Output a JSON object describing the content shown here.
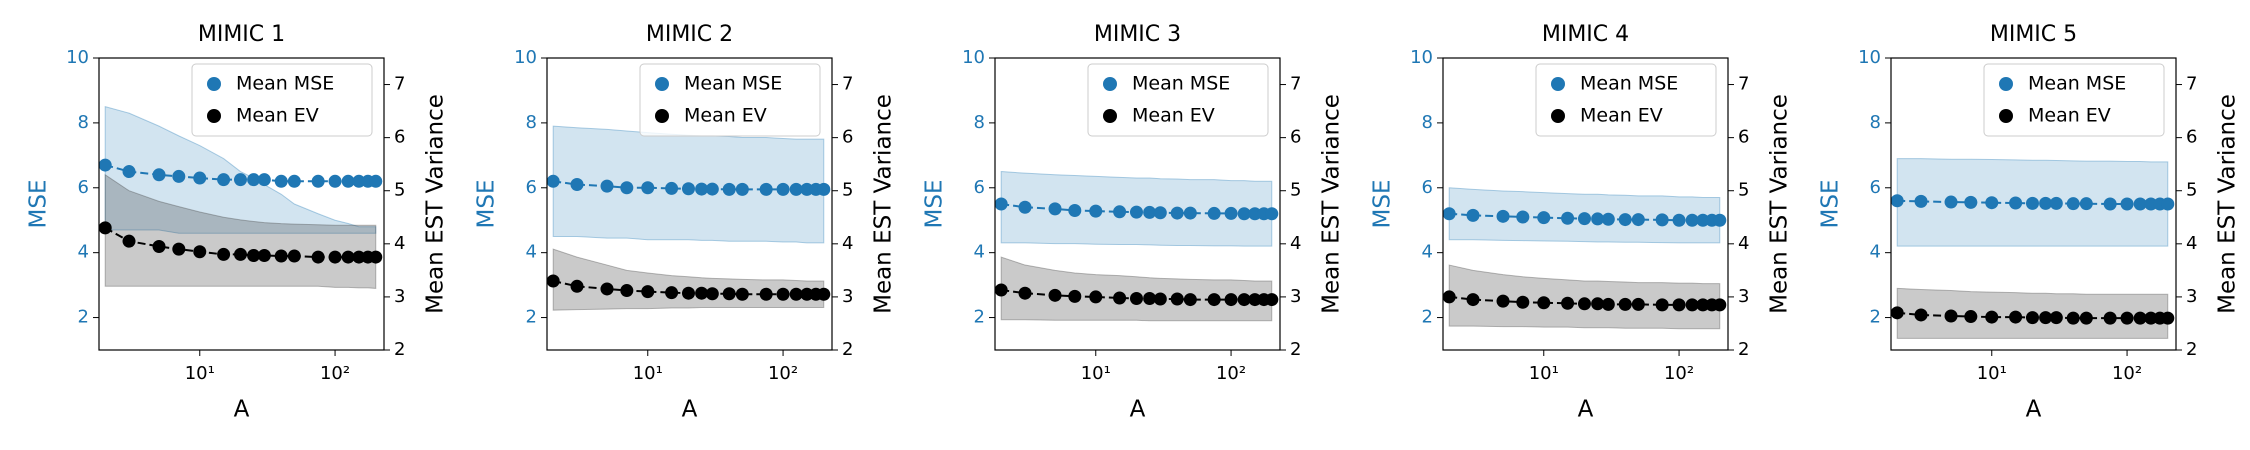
{
  "chart_data": [
    {
      "type": "line",
      "title": "MIMIC 1",
      "xlabel": "A",
      "ylabel": "MSE",
      "y2label": "Mean EST Variance",
      "xscale": "log",
      "legend": "upper right",
      "x": [
        2,
        3,
        5,
        7,
        10,
        15,
        20,
        25,
        30,
        40,
        50,
        75,
        100,
        125,
        150,
        175,
        200
      ],
      "xlim": [
        1.8,
        230
      ],
      "xticks": [
        {
          "value": 10,
          "label": "10¹"
        },
        {
          "value": 100,
          "label": "10²"
        }
      ],
      "ylim": [
        1,
        10
      ],
      "yticks": [
        2,
        4,
        6,
        8,
        10
      ],
      "y2lim": [
        2,
        7.5
      ],
      "y2ticks": [
        2,
        3,
        4,
        5,
        6,
        7
      ],
      "series": [
        {
          "name": "Mean MSE",
          "color": "#1f77b4",
          "band_color": "#1f77b4",
          "values": [
            6.7,
            6.5,
            6.4,
            6.35,
            6.3,
            6.25,
            6.25,
            6.25,
            6.25,
            6.2,
            6.2,
            6.2,
            6.2,
            6.2,
            6.2,
            6.2,
            6.2
          ],
          "upper": [
            8.5,
            8.3,
            7.9,
            7.6,
            7.3,
            6.9,
            6.5,
            6.3,
            6.1,
            5.8,
            5.5,
            5.2,
            5.0,
            4.9,
            4.8,
            4.8,
            4.8
          ],
          "lower": [
            4.7,
            4.7,
            4.7,
            4.6,
            4.6,
            4.6,
            4.6,
            4.6,
            4.6,
            4.6,
            4.6,
            4.6,
            4.6,
            4.6,
            4.6,
            4.6,
            4.6
          ]
        },
        {
          "name": "Mean EV",
          "color": "#000000",
          "band_color": "#404040",
          "axis": "y2",
          "values": [
            4.3,
            4.05,
            3.95,
            3.9,
            3.85,
            3.8,
            3.8,
            3.78,
            3.78,
            3.77,
            3.77,
            3.75,
            3.75,
            3.75,
            3.75,
            3.75,
            3.75
          ],
          "upper": [
            5.3,
            5.0,
            4.8,
            4.7,
            4.6,
            4.5,
            4.45,
            4.42,
            4.4,
            4.38,
            4.37,
            4.36,
            4.35,
            4.35,
            4.35,
            4.35,
            4.35
          ],
          "lower": [
            3.2,
            3.2,
            3.2,
            3.2,
            3.2,
            3.2,
            3.2,
            3.2,
            3.2,
            3.2,
            3.2,
            3.2,
            3.18,
            3.18,
            3.17,
            3.17,
            3.16
          ]
        }
      ]
    },
    {
      "type": "line",
      "title": "MIMIC 2",
      "xlabel": "A",
      "ylabel": "MSE",
      "y2label": "Mean EST Variance",
      "xscale": "log",
      "legend": "upper right",
      "x": [
        2,
        3,
        5,
        7,
        10,
        15,
        20,
        25,
        30,
        40,
        50,
        75,
        100,
        125,
        150,
        175,
        200
      ],
      "xlim": [
        1.8,
        230
      ],
      "xticks": [
        {
          "value": 10,
          "label": "10¹"
        },
        {
          "value": 100,
          "label": "10²"
        }
      ],
      "ylim": [
        1,
        10
      ],
      "yticks": [
        2,
        4,
        6,
        8,
        10
      ],
      "y2lim": [
        2,
        7.5
      ],
      "y2ticks": [
        2,
        3,
        4,
        5,
        6,
        7
      ],
      "series": [
        {
          "name": "Mean MSE",
          "color": "#1f77b4",
          "band_color": "#1f77b4",
          "values": [
            6.2,
            6.1,
            6.05,
            6.0,
            6.0,
            5.98,
            5.97,
            5.96,
            5.96,
            5.95,
            5.95,
            5.95,
            5.95,
            5.95,
            5.95,
            5.95,
            5.95
          ],
          "upper": [
            7.9,
            7.85,
            7.8,
            7.75,
            7.7,
            7.65,
            7.62,
            7.6,
            7.6,
            7.58,
            7.55,
            7.55,
            7.52,
            7.5,
            7.5,
            7.5,
            7.5
          ],
          "lower": [
            4.5,
            4.5,
            4.45,
            4.45,
            4.4,
            4.4,
            4.4,
            4.38,
            4.38,
            4.35,
            4.35,
            4.35,
            4.33,
            4.33,
            4.3,
            4.3,
            4.3
          ]
        },
        {
          "name": "Mean EV",
          "color": "#000000",
          "band_color": "#404040",
          "axis": "y2",
          "values": [
            3.3,
            3.2,
            3.15,
            3.12,
            3.1,
            3.08,
            3.07,
            3.07,
            3.06,
            3.06,
            3.05,
            3.05,
            3.05,
            3.05,
            3.05,
            3.05,
            3.05
          ],
          "upper": [
            3.9,
            3.75,
            3.6,
            3.5,
            3.45,
            3.4,
            3.38,
            3.36,
            3.35,
            3.34,
            3.33,
            3.32,
            3.32,
            3.31,
            3.3,
            3.3,
            3.3
          ],
          "lower": [
            2.75,
            2.76,
            2.77,
            2.78,
            2.78,
            2.79,
            2.79,
            2.8,
            2.8,
            2.8,
            2.8,
            2.8,
            2.8,
            2.8,
            2.8,
            2.8,
            2.8
          ]
        }
      ]
    },
    {
      "type": "line",
      "title": "MIMIC 3",
      "xlabel": "A",
      "ylabel": "MSE",
      "y2label": "Mean EST Variance",
      "xscale": "log",
      "legend": "upper right",
      "x": [
        2,
        3,
        5,
        7,
        10,
        15,
        20,
        25,
        30,
        40,
        50,
        75,
        100,
        125,
        150,
        175,
        200
      ],
      "xlim": [
        1.8,
        230
      ],
      "xticks": [
        {
          "value": 10,
          "label": "10¹"
        },
        {
          "value": 100,
          "label": "10²"
        }
      ],
      "ylim": [
        1,
        10
      ],
      "yticks": [
        2,
        4,
        6,
        8,
        10
      ],
      "y2lim": [
        2,
        7.5
      ],
      "y2ticks": [
        2,
        3,
        4,
        5,
        6,
        7
      ],
      "series": [
        {
          "name": "Mean MSE",
          "color": "#1f77b4",
          "band_color": "#1f77b4",
          "values": [
            5.5,
            5.4,
            5.35,
            5.3,
            5.28,
            5.26,
            5.25,
            5.24,
            5.23,
            5.22,
            5.22,
            5.21,
            5.21,
            5.2,
            5.2,
            5.2,
            5.2
          ],
          "upper": [
            6.5,
            6.45,
            6.4,
            6.38,
            6.35,
            6.32,
            6.3,
            6.3,
            6.28,
            6.27,
            6.25,
            6.25,
            6.22,
            6.22,
            6.2,
            6.2,
            6.2
          ],
          "lower": [
            4.3,
            4.3,
            4.28,
            4.28,
            4.26,
            4.25,
            4.25,
            4.24,
            4.23,
            4.22,
            4.22,
            4.21,
            4.21,
            4.2,
            4.2,
            4.2,
            4.2
          ]
        },
        {
          "name": "Mean EV",
          "color": "#000000",
          "band_color": "#404040",
          "axis": "y2",
          "values": [
            3.13,
            3.07,
            3.03,
            3.01,
            3.0,
            2.98,
            2.97,
            2.97,
            2.96,
            2.96,
            2.95,
            2.95,
            2.95,
            2.95,
            2.95,
            2.95,
            2.95
          ],
          "upper": [
            3.75,
            3.6,
            3.5,
            3.45,
            3.42,
            3.4,
            3.38,
            3.36,
            3.35,
            3.34,
            3.33,
            3.32,
            3.32,
            3.31,
            3.3,
            3.3,
            3.3
          ],
          "lower": [
            2.57,
            2.57,
            2.56,
            2.56,
            2.56,
            2.56,
            2.56,
            2.55,
            2.55,
            2.55,
            2.55,
            2.55,
            2.55,
            2.55,
            2.55,
            2.55,
            2.55
          ]
        }
      ]
    },
    {
      "type": "line",
      "title": "MIMIC 4",
      "xlabel": "A",
      "ylabel": "MSE",
      "y2label": "Mean EST Variance",
      "xscale": "log",
      "legend": "upper right",
      "x": [
        2,
        3,
        5,
        7,
        10,
        15,
        20,
        25,
        30,
        40,
        50,
        75,
        100,
        125,
        150,
        175,
        200
      ],
      "xlim": [
        1.8,
        230
      ],
      "xticks": [
        {
          "value": 10,
          "label": "10¹"
        },
        {
          "value": 100,
          "label": "10²"
        }
      ],
      "ylim": [
        1,
        10
      ],
      "yticks": [
        2,
        4,
        6,
        8,
        10
      ],
      "y2lim": [
        2,
        7.5
      ],
      "y2ticks": [
        2,
        3,
        4,
        5,
        6,
        7
      ],
      "series": [
        {
          "name": "Mean MSE",
          "color": "#1f77b4",
          "band_color": "#1f77b4",
          "values": [
            5.2,
            5.15,
            5.12,
            5.1,
            5.08,
            5.06,
            5.05,
            5.04,
            5.03,
            5.02,
            5.02,
            5.01,
            5.0,
            5.0,
            5.0,
            5.0,
            5.0
          ],
          "upper": [
            6.0,
            5.95,
            5.9,
            5.88,
            5.85,
            5.82,
            5.8,
            5.8,
            5.78,
            5.77,
            5.75,
            5.75,
            5.72,
            5.72,
            5.7,
            5.7,
            5.7
          ],
          "lower": [
            4.4,
            4.4,
            4.38,
            4.37,
            4.36,
            4.35,
            4.34,
            4.33,
            4.33,
            4.32,
            4.32,
            4.31,
            4.3,
            4.3,
            4.3,
            4.3,
            4.3
          ]
        },
        {
          "name": "Mean EV",
          "color": "#000000",
          "band_color": "#404040",
          "axis": "y2",
          "values": [
            3.0,
            2.95,
            2.92,
            2.9,
            2.89,
            2.88,
            2.87,
            2.87,
            2.86,
            2.86,
            2.86,
            2.85,
            2.85,
            2.85,
            2.85,
            2.85,
            2.85
          ],
          "upper": [
            3.6,
            3.5,
            3.42,
            3.38,
            3.35,
            3.32,
            3.3,
            3.3,
            3.29,
            3.28,
            3.27,
            3.27,
            3.26,
            3.26,
            3.25,
            3.25,
            3.25
          ],
          "lower": [
            2.45,
            2.45,
            2.44,
            2.44,
            2.43,
            2.43,
            2.42,
            2.42,
            2.42,
            2.41,
            2.41,
            2.41,
            2.4,
            2.4,
            2.4,
            2.4,
            2.4
          ]
        }
      ]
    },
    {
      "type": "line",
      "title": "MIMIC 5",
      "xlabel": "A",
      "ylabel": "MSE",
      "y2label": "Mean EST Variance",
      "xscale": "log",
      "legend": "upper right",
      "x": [
        2,
        3,
        5,
        7,
        10,
        15,
        20,
        25,
        30,
        40,
        50,
        75,
        100,
        125,
        150,
        175,
        200
      ],
      "xlim": [
        1.8,
        230
      ],
      "xticks": [
        {
          "value": 10,
          "label": "10¹"
        },
        {
          "value": 100,
          "label": "10²"
        }
      ],
      "ylim": [
        1,
        10
      ],
      "yticks": [
        2,
        4,
        6,
        8,
        10
      ],
      "y2lim": [
        2,
        7.5
      ],
      "y2ticks": [
        2,
        3,
        4,
        5,
        6,
        7
      ],
      "series": [
        {
          "name": "Mean MSE",
          "color": "#1f77b4",
          "band_color": "#1f77b4",
          "values": [
            5.6,
            5.58,
            5.56,
            5.55,
            5.54,
            5.53,
            5.52,
            5.52,
            5.52,
            5.51,
            5.51,
            5.5,
            5.5,
            5.5,
            5.5,
            5.5,
            5.5
          ],
          "upper": [
            6.9,
            6.9,
            6.88,
            6.88,
            6.87,
            6.86,
            6.85,
            6.85,
            6.84,
            6.83,
            6.82,
            6.82,
            6.81,
            6.81,
            6.8,
            6.8,
            6.8
          ],
          "lower": [
            4.2,
            4.2,
            4.2,
            4.2,
            4.2,
            4.2,
            4.2,
            4.2,
            4.2,
            4.2,
            4.2,
            4.2,
            4.2,
            4.2,
            4.2,
            4.2,
            4.2
          ]
        },
        {
          "name": "Mean EV",
          "color": "#000000",
          "band_color": "#404040",
          "axis": "y2",
          "values": [
            2.7,
            2.66,
            2.64,
            2.63,
            2.62,
            2.62,
            2.61,
            2.61,
            2.61,
            2.6,
            2.6,
            2.6,
            2.6,
            2.6,
            2.6,
            2.6,
            2.6
          ],
          "upper": [
            3.16,
            3.14,
            3.12,
            3.1,
            3.09,
            3.08,
            3.07,
            3.07,
            3.06,
            3.06,
            3.05,
            3.05,
            3.05,
            3.05,
            3.05,
            3.05,
            3.05
          ],
          "lower": [
            2.22,
            2.22,
            2.22,
            2.22,
            2.22,
            2.22,
            2.22,
            2.22,
            2.22,
            2.22,
            2.22,
            2.22,
            2.22,
            2.22,
            2.22,
            2.22,
            2.22
          ]
        }
      ]
    }
  ]
}
